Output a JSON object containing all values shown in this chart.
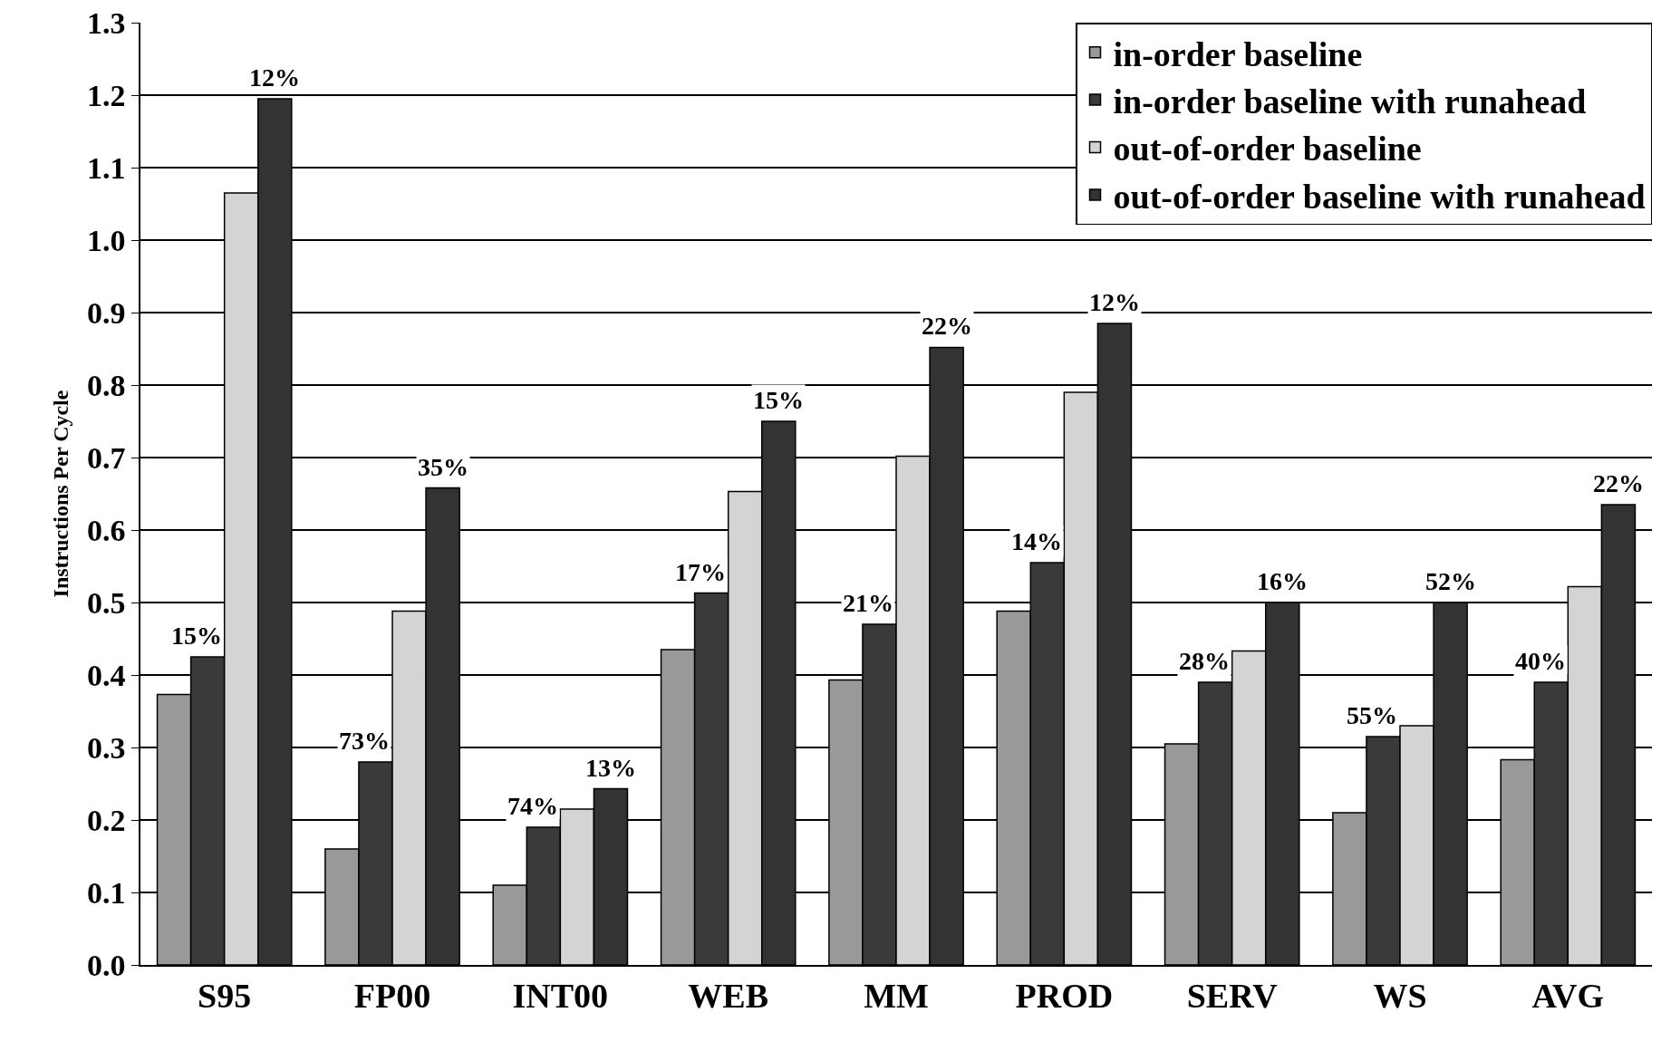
{
  "chart_data": {
    "type": "bar",
    "ylabel": "Instructions Per Cycle",
    "categories": [
      "S95",
      "FP00",
      "INT00",
      "WEB",
      "MM",
      "PROD",
      "SERV",
      "WS",
      "AVG"
    ],
    "series": [
      {
        "name": "in-order baseline",
        "color": "#999999",
        "values": [
          0.373,
          0.16,
          0.11,
          0.435,
          0.393,
          0.488,
          0.305,
          0.21,
          0.283
        ]
      },
      {
        "name": "in-order baseline with runahead",
        "color": "#3a3a3a",
        "values": [
          0.425,
          0.28,
          0.19,
          0.513,
          0.47,
          0.555,
          0.39,
          0.315,
          0.39
        ]
      },
      {
        "name": "out-of-order baseline",
        "color": "#d4d4d4",
        "values": [
          1.065,
          0.488,
          0.215,
          0.653,
          0.702,
          0.79,
          0.433,
          0.33,
          0.522
        ]
      },
      {
        "name": "out-of-order baseline with runahead",
        "color": "#333333",
        "values": [
          1.195,
          0.658,
          0.243,
          0.75,
          0.852,
          0.885,
          0.5,
          0.5,
          0.635
        ]
      }
    ],
    "annotations": [
      "15%",
      "12%",
      "73%",
      "35%",
      "74%",
      "13%",
      "17%",
      "15%",
      "21%",
      "22%",
      "14%",
      "12%",
      "28%",
      "16%",
      "55%",
      "52%",
      "40%",
      "22%"
    ],
    "ylim": [
      0,
      1.3
    ],
    "yticks": [
      {
        "value": 0,
        "label": "0.0"
      },
      0.1,
      0.2,
      0.3,
      0.4,
      0.5,
      0.6,
      0.7,
      0.8,
      0.9,
      {
        "value": 1,
        "label": "1.0"
      },
      1.1,
      1.2,
      1.3
    ],
    "grid": "y",
    "legend": "top right"
  }
}
